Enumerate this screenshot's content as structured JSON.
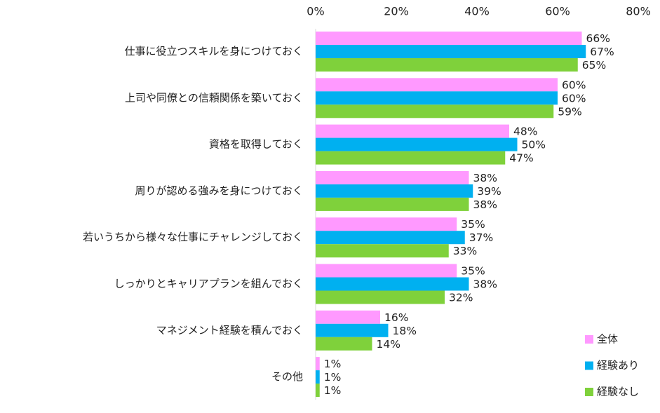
{
  "chart_data": {
    "type": "bar",
    "orientation": "horizontal",
    "title": "",
    "xlim": [
      0,
      80
    ],
    "x_ticks": [
      "0%",
      "20%",
      "40%",
      "60%",
      "80%"
    ],
    "x_tick_values": [
      0,
      20,
      40,
      60,
      80
    ],
    "x_axis_position": "top",
    "grid": false,
    "legend_position": "bottom-right",
    "value_suffix": "%",
    "categories": [
      "仕事に役立つスキルを身につけておく",
      "上司や同僚との信頼関係を築いておく",
      "資格を取得しておく",
      "周りが認める強みを身につけておく",
      "若いうちから様々な仕事にチャレンジしておく",
      "しっかりとキャリアプランを組んでおく",
      "マネジメント経験を積んでおく",
      "その他"
    ],
    "series": [
      {
        "name": "全体",
        "color": "#ff99ff",
        "values": [
          66,
          60,
          48,
          38,
          35,
          35,
          16,
          1
        ],
        "labels": [
          "66%",
          "60%",
          "48%",
          "38%",
          "35%",
          "35%",
          "16%",
          "1%"
        ]
      },
      {
        "name": "経験あり",
        "color": "#00b0f0",
        "values": [
          67,
          60,
          50,
          39,
          37,
          38,
          18,
          1
        ],
        "labels": [
          "67%",
          "60%",
          "50%",
          "39%",
          "37%",
          "38%",
          "18%",
          "1%"
        ]
      },
      {
        "name": "経験なし",
        "color": "#7fd13b",
        "values": [
          65,
          59,
          47,
          38,
          33,
          32,
          14,
          1
        ],
        "labels": [
          "65%",
          "59%",
          "47%",
          "38%",
          "33%",
          "32%",
          "14%",
          "1%"
        ]
      }
    ]
  }
}
